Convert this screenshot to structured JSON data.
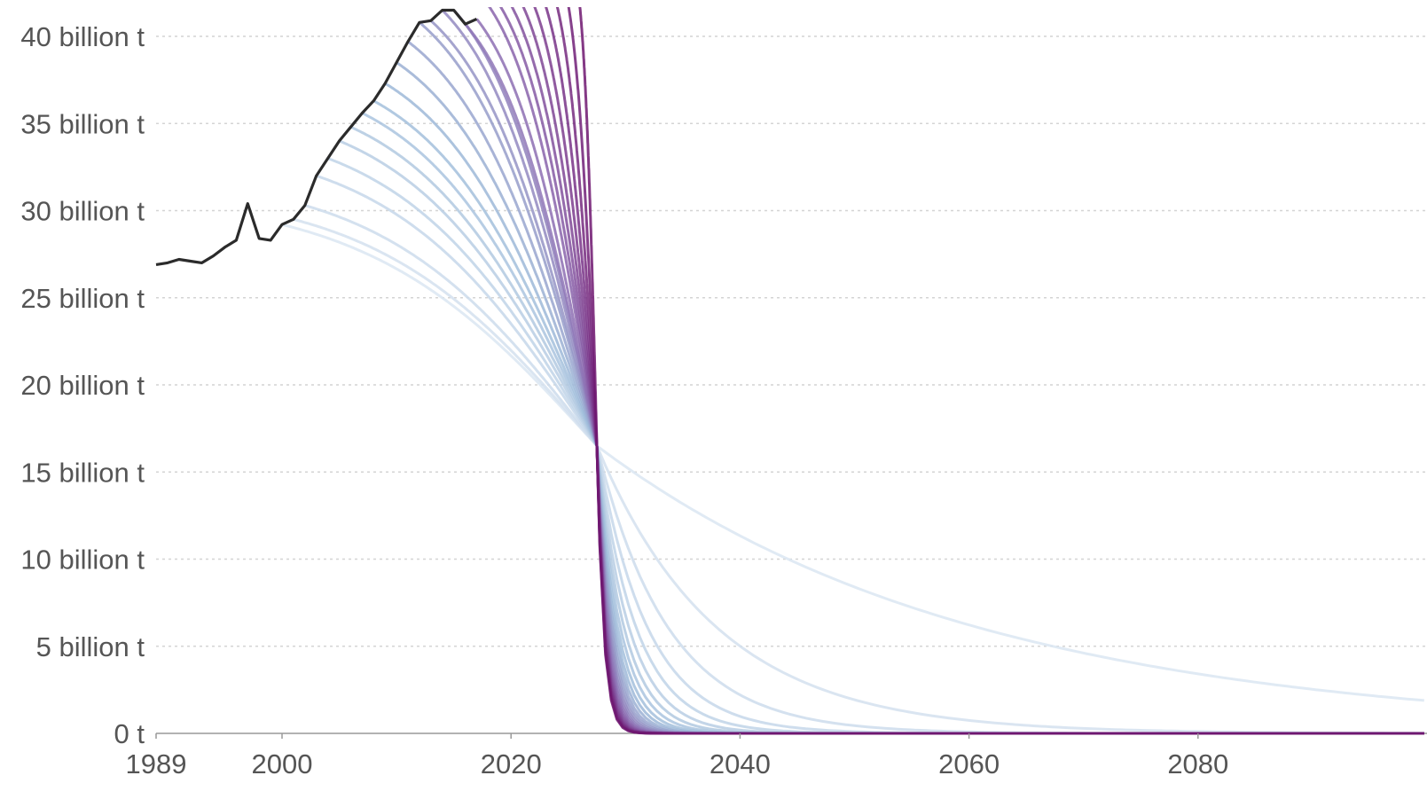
{
  "chart_data": {
    "type": "line",
    "title": "",
    "xlabel": "",
    "ylabel": "",
    "xlim": [
      1989,
      2100
    ],
    "ylim": [
      0,
      41
    ],
    "grid": true,
    "legend": "none",
    "x_ticks": [
      {
        "value": 1989,
        "label": "1989"
      },
      {
        "value": 2000,
        "label": "2000"
      },
      {
        "value": 2020,
        "label": "2020"
      },
      {
        "value": 2040,
        "label": "2040"
      },
      {
        "value": 2060,
        "label": "2060"
      },
      {
        "value": 2080,
        "label": "2080"
      }
    ],
    "y_ticks": [
      {
        "value": 0,
        "label": "0 t"
      },
      {
        "value": 5,
        "label": "5 billion t"
      },
      {
        "value": 10,
        "label": "10 billion t"
      },
      {
        "value": 15,
        "label": "15 billion t"
      },
      {
        "value": 20,
        "label": "20 billion t"
      },
      {
        "value": 25,
        "label": "25 billion t"
      },
      {
        "value": 30,
        "label": "30 billion t"
      },
      {
        "value": 35,
        "label": "35 billion t"
      },
      {
        "value": 40,
        "label": "40 billion t"
      }
    ],
    "colors": {
      "historical": "#2b2b2b",
      "earliest_pathway": "#dbe6f2",
      "latest_pathway": "#6e1670",
      "grid": "#d4d4d4",
      "axis": "#999999",
      "tick_text": "#555555"
    },
    "historical": {
      "x": [
        1989,
        1990,
        1991,
        1992,
        1993,
        1994,
        1995,
        1996,
        1997,
        1998,
        1999,
        2000,
        2001,
        2002,
        2003,
        2004,
        2005,
        2006,
        2007,
        2008,
        2009,
        2010,
        2011,
        2012,
        2013,
        2014,
        2015,
        2016,
        2017,
        2018
      ],
      "y": [
        26.9,
        27.0,
        27.2,
        27.1,
        27.0,
        27.4,
        27.9,
        28.3,
        30.4,
        28.4,
        28.3,
        29.2,
        29.5,
        30.3,
        32.0,
        33.0,
        34.0,
        34.8,
        35.6,
        36.3,
        37.3,
        38.5,
        39.7,
        40.8,
        40.9,
        41.5,
        41.5,
        40.7,
        41.0,
        41.8
      ],
      "gaps": [
        [
          1999,
          2001
        ],
        [
          2017,
          2018
        ]
      ]
    },
    "mitigation_pathways": {
      "start_years": [
        2000,
        2001,
        2002,
        2003,
        2004,
        2005,
        2006,
        2007,
        2008,
        2009,
        2010,
        2011,
        2012,
        2013,
        2014,
        2015,
        2016,
        2017,
        2018,
        2019,
        2020,
        2021,
        2022,
        2023,
        2024,
        2025,
        2026
      ],
      "convergence_point": {
        "x": 2027.5,
        "y": 16.5
      },
      "end_value_2100": 0.3
    }
  }
}
